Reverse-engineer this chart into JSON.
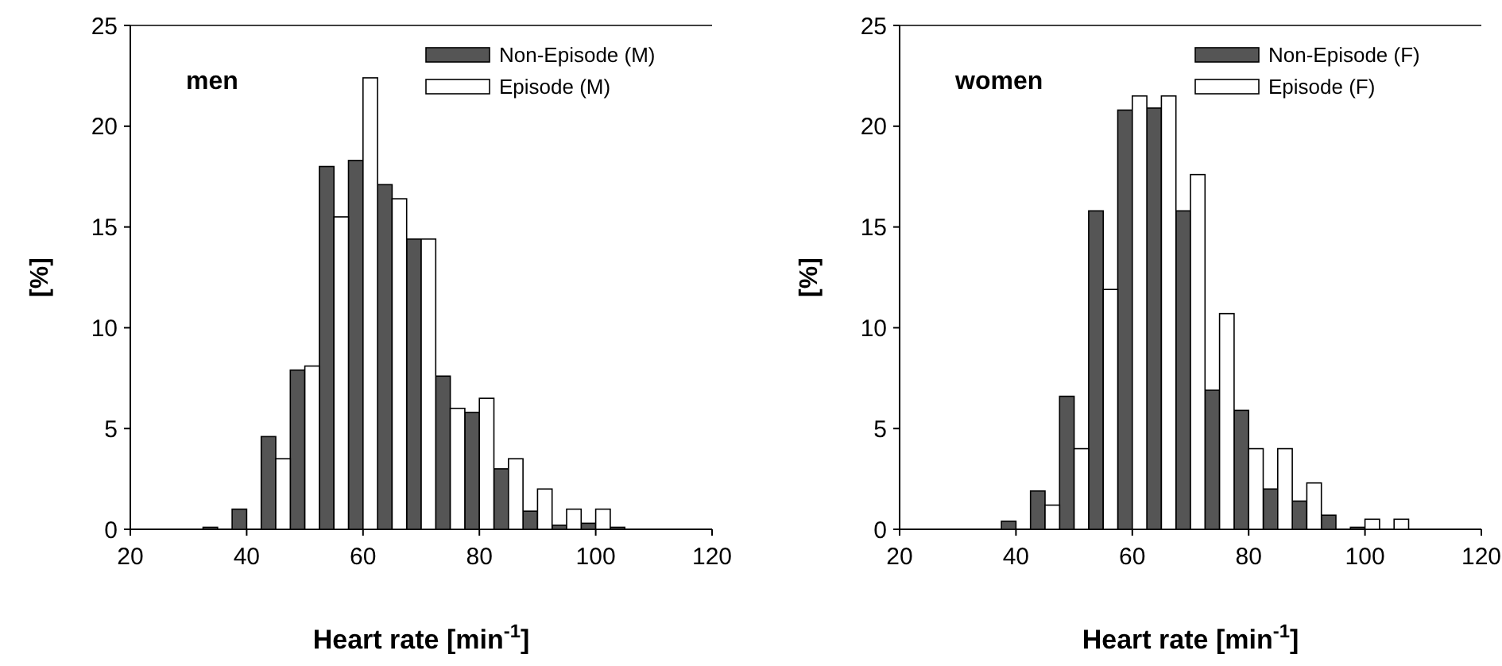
{
  "chart_data": [
    {
      "type": "bar",
      "title": "men",
      "xlabel": "Heart rate [min$^{-1}$]",
      "ylabel": "[%]",
      "x": [
        35,
        40,
        45,
        50,
        55,
        60,
        65,
        70,
        75,
        80,
        85,
        90,
        95,
        100,
        105
      ],
      "series": [
        {
          "name": "Non-Episode (M)",
          "color": "#555555",
          "values": [
            0.1,
            1.0,
            4.6,
            7.9,
            18.0,
            18.3,
            17.1,
            14.4,
            7.6,
            5.8,
            3.0,
            0.9,
            0.2,
            0.3,
            0.1
          ]
        },
        {
          "name": "Episode (M)",
          "color": "#ffffff",
          "values": [
            0,
            0,
            3.5,
            8.1,
            15.5,
            22.4,
            16.4,
            14.4,
            6.0,
            6.5,
            3.5,
            2.0,
            1.0,
            1.0,
            0
          ]
        }
      ],
      "xlim": [
        20,
        120
      ],
      "xticks": [
        20,
        40,
        60,
        80,
        100,
        120
      ],
      "ylim": [
        0,
        25
      ],
      "yticks": [
        0,
        5,
        10,
        15,
        20,
        25
      ],
      "legend": "top right"
    },
    {
      "type": "bar",
      "title": "women",
      "xlabel": "Heart rate [min$^{-1}$]",
      "ylabel": "[%]",
      "x": [
        35,
        40,
        45,
        50,
        55,
        60,
        65,
        70,
        75,
        80,
        85,
        90,
        95,
        100,
        105
      ],
      "series": [
        {
          "name": "Non-Episode (F)",
          "color": "#555555",
          "values": [
            0,
            0.4,
            1.9,
            6.6,
            15.8,
            20.8,
            20.9,
            15.8,
            6.9,
            5.9,
            2.0,
            1.4,
            0.7,
            0.1,
            0
          ]
        },
        {
          "name": "Episode (F)",
          "color": "#ffffff",
          "values": [
            0,
            0,
            1.2,
            4.0,
            11.9,
            21.5,
            21.5,
            17.6,
            10.7,
            4.0,
            4.0,
            2.3,
            0,
            0.5,
            0.5
          ]
        }
      ],
      "xlim": [
        20,
        120
      ],
      "xticks": [
        20,
        40,
        60,
        80,
        100,
        120
      ],
      "ylim": [
        0,
        25
      ],
      "yticks": [
        0,
        5,
        10,
        15,
        20,
        25
      ],
      "legend": "top right"
    }
  ]
}
